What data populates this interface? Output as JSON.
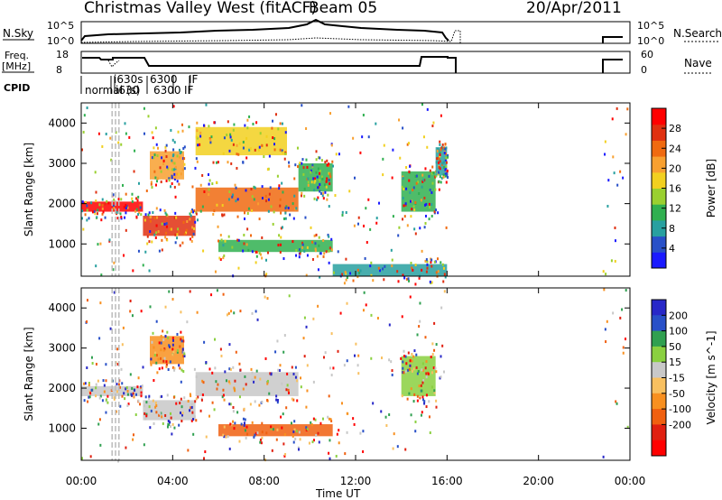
{
  "header": {
    "title": "Christmas Valley West (fitACF)",
    "beam": "Beam 05",
    "date": "20/Apr/2011"
  },
  "summary_panels": {
    "nsky_label": "N.Sky",
    "nsky_ticks": [
      "10^5",
      "10^0"
    ],
    "nsearch_label": "N.Search",
    "nsearch_ticks": [
      "10^5",
      "10^0"
    ],
    "freq_label": "Freq.",
    "freq_unit": "[MHz]",
    "freq_ticks": [
      18,
      8
    ],
    "nave_label": "Nave",
    "nave_ticks": [
      60,
      0
    ],
    "cpid_label": "CPID",
    "cpid_entries": [
      "normal (s)",
      "i630s",
      "i630",
      "6300",
      "IF",
      "6300",
      "IF"
    ]
  },
  "time_axis": {
    "label": "Time UT",
    "ticks": [
      "00:00",
      "04:00",
      "08:00",
      "12:00",
      "16:00",
      "20:00",
      "00:00"
    ],
    "range_hours": [
      0,
      24
    ]
  },
  "chart_data": [
    {
      "type": "heatmap",
      "name": "power",
      "ylabel": "Slant Range [km]",
      "yticks": [
        1000,
        2000,
        3000,
        4000
      ],
      "ylim": [
        200,
        4500
      ],
      "colorbar_label": "Power [dB]",
      "colorbar_ticks": [
        4,
        8,
        12,
        16,
        20,
        24,
        28
      ],
      "colorbar_range": [
        0,
        32
      ],
      "colors": [
        "#1a1aff",
        "#2850c8",
        "#28a0a0",
        "#30b050",
        "#9ad030",
        "#f2d020",
        "#f8a030",
        "#f06a10",
        "#e03010",
        "#ff0000"
      ],
      "bands": [
        {
          "t": [
            0.0,
            2.7
          ],
          "r": [
            1800,
            2050
          ],
          "level": 29
        },
        {
          "t": [
            2.7,
            5.0
          ],
          "r": [
            1200,
            1700
          ],
          "level": 26
        },
        {
          "t": [
            5.0,
            9.5
          ],
          "r": [
            1800,
            2400
          ],
          "level": 24
        },
        {
          "t": [
            3.0,
            4.5
          ],
          "r": [
            2600,
            3300
          ],
          "level": 22
        },
        {
          "t": [
            5.0,
            9.0
          ],
          "r": [
            3200,
            3900
          ],
          "level": 16
        },
        {
          "t": [
            6.0,
            11.0
          ],
          "r": [
            800,
            1100
          ],
          "level": 12
        },
        {
          "t": [
            9.5,
            11.0
          ],
          "r": [
            2300,
            3000
          ],
          "level": 10
        },
        {
          "t": [
            14.0,
            15.5
          ],
          "r": [
            1800,
            2800
          ],
          "level": 12
        },
        {
          "t": [
            15.5,
            16.0
          ],
          "r": [
            2700,
            3400
          ],
          "level": 8
        },
        {
          "t": [
            11.0,
            16.0
          ],
          "r": [
            200,
            500
          ],
          "level": 8
        }
      ]
    },
    {
      "type": "heatmap",
      "name": "velocity",
      "ylabel": "Slant Range [km]",
      "yticks": [
        1000,
        2000,
        3000,
        4000
      ],
      "ylim": [
        200,
        4500
      ],
      "colorbar_label": "Velocity [m s^-1]",
      "colorbar_ticks": [
        200,
        100,
        50,
        15,
        -15,
        -50,
        -100,
        -200
      ],
      "colors": [
        "#2828c8",
        "#2850c8",
        "#30a050",
        "#8ad040",
        "#c8c8c8",
        "#f8c060",
        "#f89020",
        "#f06010",
        "#e02010",
        "#ff0000"
      ],
      "bands": [
        {
          "t": [
            0.0,
            2.7
          ],
          "r": [
            1800,
            2050
          ],
          "level": "-15 to 15"
        },
        {
          "t": [
            2.7,
            5.0
          ],
          "r": [
            1200,
            1700
          ],
          "level": "-15 to 15"
        },
        {
          "t": [
            5.0,
            9.5
          ],
          "r": [
            1800,
            2400
          ],
          "level": "-15 to 15"
        },
        {
          "t": [
            3.0,
            4.5
          ],
          "r": [
            2600,
            3300
          ],
          "level": "-50"
        },
        {
          "t": [
            6.0,
            11.0
          ],
          "r": [
            800,
            1100
          ],
          "level": "-100"
        },
        {
          "t": [
            14.0,
            15.5
          ],
          "r": [
            1800,
            2800
          ],
          "level": "50"
        }
      ]
    }
  ]
}
